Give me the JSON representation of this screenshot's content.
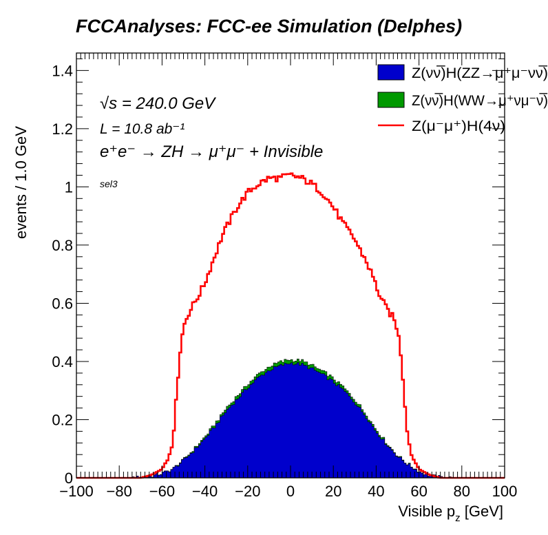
{
  "chart_data": {
    "type": "histogram",
    "title": "FCCAnalyses: FCC-ee Simulation (Delphes)",
    "xlabel": "Visible p_z [GeV]",
    "xlabel_main": "Visible p",
    "xlabel_sub": "z",
    "xlabel_unit": " [GeV]",
    "ylabel": "events / 1.0 GeV",
    "xlim": [
      -100,
      100
    ],
    "ylim": [
      0,
      1.46
    ],
    "x_ticks": [
      -100,
      -80,
      -60,
      -40,
      -20,
      0,
      20,
      40,
      60,
      80,
      100
    ],
    "x_tick_labels": [
      "−100",
      "−80",
      "−60",
      "−40",
      "−20",
      "0",
      "20",
      "40",
      "60",
      "80",
      "100"
    ],
    "y_ticks": [
      0,
      0.2,
      0.4,
      0.6,
      0.8,
      1,
      1.2,
      1.4
    ],
    "y_tick_labels": [
      "0",
      "0.2",
      "0.4",
      "0.6",
      "0.8",
      "1",
      "1.2",
      "1.4"
    ],
    "grid": false,
    "legend_position": "top-right",
    "annotations": {
      "sqrt_s": "√s = 240.0 GeV",
      "lumi": "L = 10.8 ab⁻¹",
      "process": "e⁺e⁻ → ZH → μ⁺μ⁻ + Invisible",
      "selection": "sel3"
    },
    "series": [
      {
        "name": "Z(νν̅)H(ZZ→μ⁺μ⁻νν̅)",
        "style": "filled-stack",
        "color": "#0000cc",
        "edge_color": "#000000",
        "x": [
          -75,
          -70,
          -65,
          -60,
          -55,
          -50,
          -45,
          -40,
          -35,
          -30,
          -25,
          -20,
          -15,
          -10,
          -5,
          0,
          5,
          10,
          15,
          20,
          25,
          30,
          35,
          40,
          45,
          50,
          55,
          60,
          65,
          70,
          75
        ],
        "values": [
          0.0,
          0.002,
          0.006,
          0.015,
          0.03,
          0.06,
          0.095,
          0.135,
          0.18,
          0.23,
          0.27,
          0.31,
          0.345,
          0.37,
          0.385,
          0.395,
          0.39,
          0.375,
          0.355,
          0.33,
          0.3,
          0.26,
          0.215,
          0.16,
          0.115,
          0.075,
          0.045,
          0.022,
          0.008,
          0.002,
          0.0
        ]
      },
      {
        "name": "Z(νν̅)H(WW→μ⁺νμ⁻ν̅)",
        "style": "filled-stack",
        "color": "#009900",
        "edge_color": "#000000",
        "x": [
          -60,
          -50,
          -40,
          -30,
          -20,
          -10,
          0,
          10,
          20,
          30,
          40,
          50,
          60
        ],
        "values": [
          0.0,
          0.002,
          0.006,
          0.009,
          0.011,
          0.012,
          0.012,
          0.012,
          0.011,
          0.009,
          0.006,
          0.002,
          0.0
        ]
      },
      {
        "name": "Z(μ⁻μ⁺)H(4ν)",
        "style": "line",
        "color": "#ff0000",
        "x": [
          -70,
          -65,
          -60,
          -57,
          -55,
          -53,
          -52,
          -50,
          -48,
          -45,
          -42,
          -40,
          -38,
          -35,
          -32,
          -30,
          -25,
          -20,
          -15,
          -10,
          -5,
          0,
          5,
          10,
          15,
          20,
          25,
          30,
          32,
          35,
          38,
          40,
          42,
          45,
          48,
          50,
          52,
          53,
          55,
          57,
          60,
          65,
          70
        ],
        "values": [
          0.0,
          0.01,
          0.03,
          0.07,
          0.13,
          0.3,
          0.41,
          0.52,
          0.56,
          0.6,
          0.64,
          0.67,
          0.71,
          0.77,
          0.83,
          0.86,
          0.93,
          0.98,
          1.01,
          1.03,
          1.03,
          1.04,
          1.03,
          1.01,
          0.98,
          0.93,
          0.87,
          0.82,
          0.79,
          0.75,
          0.7,
          0.66,
          0.62,
          0.58,
          0.55,
          0.51,
          0.4,
          0.29,
          0.13,
          0.07,
          0.03,
          0.01,
          0.0
        ]
      }
    ]
  }
}
